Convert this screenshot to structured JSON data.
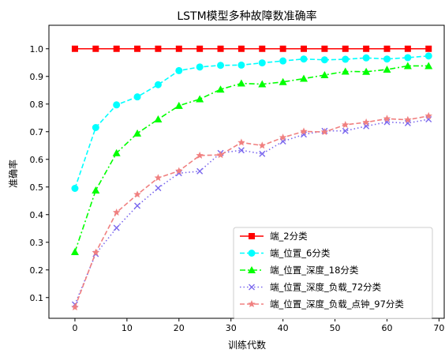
{
  "chart_data": {
    "type": "line",
    "title": "LSTM模型多种故障数准确率",
    "xlabel": "训练代数",
    "ylabel": "准确率",
    "xlim": [
      -5,
      71
    ],
    "ylim": [
      0.025,
      1.085
    ],
    "x_ticks": [
      0,
      10,
      20,
      30,
      40,
      50,
      60,
      70
    ],
    "y_ticks": [
      0.1,
      0.2,
      0.3,
      0.4,
      0.5,
      0.6,
      0.7,
      0.8,
      0.9,
      1.0
    ],
    "x_tick_labels": [
      "0",
      "10",
      "20",
      "30",
      "40",
      "50",
      "60",
      "70"
    ],
    "y_tick_labels": [
      "0.1",
      "0.2",
      "0.3",
      "0.4",
      "0.5",
      "0.6",
      "0.7",
      "0.8",
      "0.9",
      "1.0"
    ],
    "grid": false,
    "legend_position": "lower-right",
    "x": [
      0,
      4,
      8,
      12,
      16,
      20,
      24,
      28,
      32,
      36,
      40,
      44,
      48,
      52,
      56,
      60,
      64,
      68
    ],
    "series": [
      {
        "name": "端_2分类",
        "color": "#ff0000",
        "line_style": "solid",
        "marker": "square",
        "values": [
          1.0,
          1.0,
          1.0,
          1.0,
          1.0,
          1.0,
          1.0,
          1.0,
          1.0,
          1.0,
          1.0,
          1.0,
          1.0,
          1.0,
          1.0,
          1.0,
          1.0,
          1.0
        ]
      },
      {
        "name": "端_位置_6分类",
        "color": "#00ffff",
        "line_style": "dashed",
        "marker": "circle",
        "values": [
          0.495,
          0.715,
          0.797,
          0.826,
          0.87,
          0.921,
          0.934,
          0.94,
          0.941,
          0.949,
          0.956,
          0.963,
          0.96,
          0.962,
          0.967,
          0.963,
          0.968,
          0.974
        ]
      },
      {
        "name": "端_位置_深度_18分类",
        "color": "#00ff00",
        "line_style": "dashdot",
        "marker": "triangle",
        "values": [
          0.265,
          0.488,
          0.623,
          0.694,
          0.745,
          0.794,
          0.818,
          0.853,
          0.875,
          0.872,
          0.88,
          0.892,
          0.905,
          0.918,
          0.917,
          0.925,
          0.938,
          0.938
        ]
      },
      {
        "name": "端_位置_深度_负载_72分类",
        "color": "#7b68ee",
        "line_style": "dotted",
        "marker": "x",
        "values": [
          0.075,
          0.258,
          0.352,
          0.432,
          0.496,
          0.55,
          0.557,
          0.623,
          0.633,
          0.62,
          0.665,
          0.69,
          0.703,
          0.703,
          0.72,
          0.735,
          0.731,
          0.745
        ]
      },
      {
        "name": "端_位置_深度_负载_点钟_97分类",
        "color": "#f08080",
        "line_style": "dashed",
        "marker": "star",
        "values": [
          0.065,
          0.263,
          0.408,
          0.473,
          0.533,
          0.558,
          0.614,
          0.616,
          0.661,
          0.65,
          0.679,
          0.701,
          0.699,
          0.725,
          0.734,
          0.747,
          0.743,
          0.757
        ]
      }
    ]
  }
}
